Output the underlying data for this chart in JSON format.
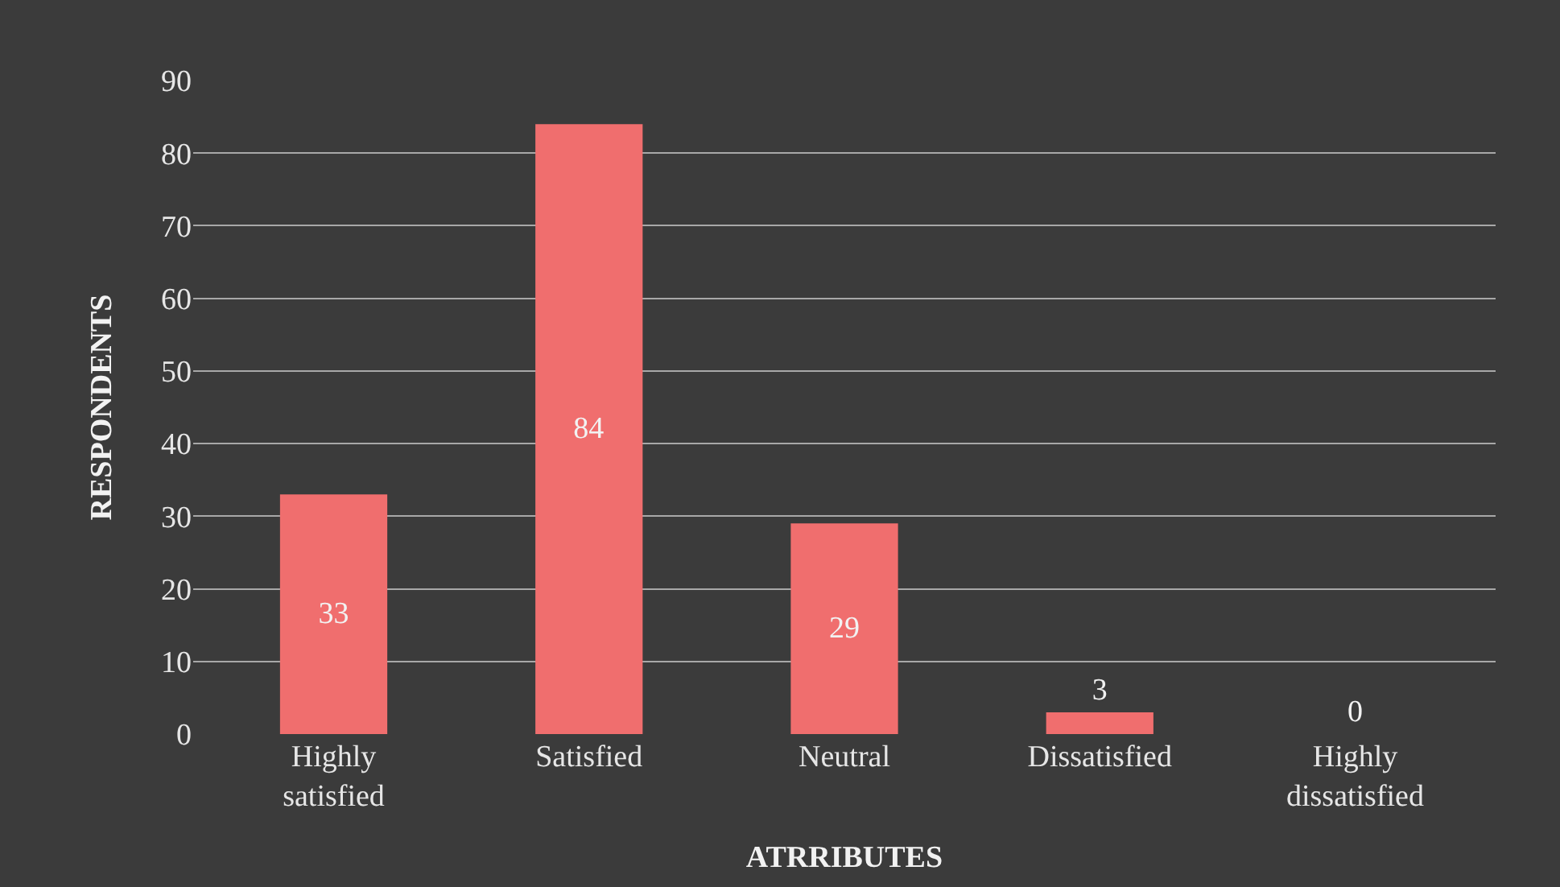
{
  "chart_data": {
    "type": "bar",
    "xlabel": "ATRRIBUTES",
    "ylabel": "RESPONDENTS",
    "categories": [
      "Highly satisfied",
      "Satisfied",
      "Neutral",
      "Dissatisfied",
      "Highly dissatisfied"
    ],
    "values": [
      33,
      84,
      29,
      3,
      0
    ],
    "color": "#f06e6e",
    "ylim": [
      0,
      90
    ],
    "yticks": [
      0,
      10,
      20,
      30,
      40,
      50,
      60,
      70,
      80,
      90
    ],
    "grid": true,
    "data_labels": true
  }
}
